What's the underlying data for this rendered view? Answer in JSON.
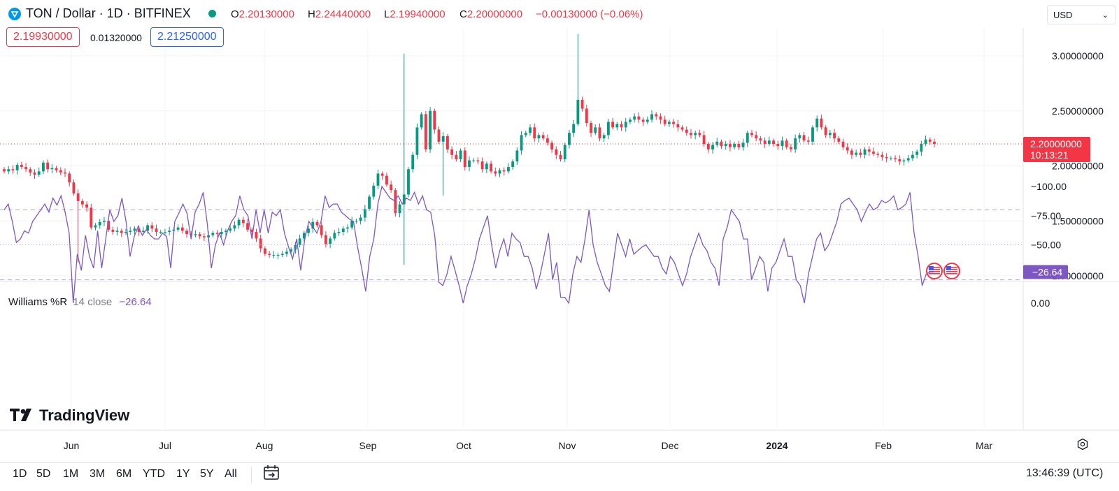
{
  "header": {
    "symbol": "TON / Dollar · 1D · BITFINEX",
    "ohlc": {
      "o_label": "O",
      "o": "2.20130000",
      "h_label": "H",
      "h": "2.24440000",
      "l_label": "L",
      "l": "2.19940000",
      "c_label": "C",
      "c": "2.20000000",
      "change": "−0.00130000 (−0.06%)"
    },
    "bid": "2.19930000",
    "spread": "0.01320000",
    "ask": "2.21250000",
    "currency": "USD"
  },
  "last_price": {
    "value": "2.20000000",
    "countdown": "10:13:21"
  },
  "indicator": {
    "name": "Williams %R",
    "params": "14 close",
    "value": "−26.64",
    "badge": "−26.64"
  },
  "footer": {
    "ranges": [
      "1D",
      "5D",
      "1M",
      "3M",
      "6M",
      "YTD",
      "1Y",
      "5Y",
      "All"
    ],
    "time": "13:46:39 (UTC)"
  },
  "brand": "TradingView",
  "colors": {
    "up": "#089981",
    "down": "#F23645",
    "indicator": "#7E57C2",
    "grid": "#F0F3FA",
    "text": "#131722"
  },
  "chart_data": [
    {
      "type": "candlestick",
      "timeframe": "1D",
      "x_axis_labels": [
        "Jun",
        "Jul",
        "Aug",
        "Sep",
        "Oct",
        "Nov",
        "Dec",
        "2024",
        "Feb",
        "Mar"
      ],
      "y_ticks": [
        "1.00000000",
        "1.50000000",
        "2.00000000",
        "2.50000000",
        "3.00000000"
      ],
      "ylim": [
        0.98,
        3.18
      ],
      "last_price_line": 2.2,
      "closes": [
        1.95,
        1.97,
        1.96,
        2.01,
        1.99,
        1.97,
        1.94,
        1.92,
        1.95,
        2.03,
        1.97,
        1.98,
        1.96,
        1.94,
        1.93,
        1.85,
        1.75,
        1.68,
        1.65,
        1.62,
        1.44,
        1.46,
        1.49,
        1.5,
        1.42,
        1.4,
        1.41,
        1.39,
        1.4,
        1.41,
        1.43,
        1.4,
        1.41,
        1.46,
        1.43,
        1.4,
        1.4,
        1.4,
        1.41,
        1.42,
        1.44,
        1.41,
        1.38,
        1.37,
        1.38,
        1.36,
        1.35,
        1.37,
        1.39,
        1.38,
        1.4,
        1.41,
        1.43,
        1.46,
        1.51,
        1.48,
        1.42,
        1.4,
        1.34,
        1.25,
        1.2,
        1.19,
        1.19,
        1.19,
        1.2,
        1.22,
        1.24,
        1.28,
        1.34,
        1.39,
        1.43,
        1.49,
        1.46,
        1.37,
        1.29,
        1.34,
        1.39,
        1.4,
        1.43,
        1.44,
        1.5,
        1.5,
        1.53,
        1.61,
        1.72,
        1.82,
        1.93,
        1.91,
        1.83,
        1.78,
        1.57,
        1.65,
        1.74,
        1.97,
        2.1,
        2.35,
        2.47,
        2.15,
        2.5,
        2.33,
        2.22,
        2.27,
        2.15,
        2.1,
        2.06,
        2.14,
        1.99,
        2.05,
        2.05,
        2.04,
        1.97,
        2.02,
        1.95,
        1.93,
        1.96,
        1.95,
        1.99,
        2.04,
        2.14,
        2.28,
        2.3,
        2.35,
        2.25,
        2.28,
        2.25,
        2.21,
        2.15,
        2.1,
        2.06,
        2.19,
        2.3,
        2.38,
        2.6,
        2.52,
        2.39,
        2.3,
        2.35,
        2.25,
        2.28,
        2.4,
        2.35,
        2.38,
        2.35,
        2.4,
        2.42,
        2.45,
        2.42,
        2.4,
        2.42,
        2.47,
        2.45,
        2.42,
        2.38,
        2.4,
        2.38,
        2.35,
        2.33,
        2.3,
        2.28,
        2.3,
        2.28,
        2.2,
        2.15,
        2.19,
        2.22,
        2.18,
        2.2,
        2.17,
        2.2,
        2.17,
        2.21,
        2.3,
        2.28,
        2.25,
        2.23,
        2.2,
        2.23,
        2.2,
        2.18,
        2.23,
        2.17,
        2.15,
        2.25,
        2.28,
        2.23,
        2.22,
        2.35,
        2.43,
        2.35,
        2.28,
        2.3,
        2.25,
        2.22,
        2.17,
        2.14,
        2.1,
        2.12,
        2.1,
        2.15,
        2.13,
        2.11,
        2.1,
        2.08,
        2.07,
        2.07,
        2.06,
        2.04,
        2.05,
        2.07,
        2.1,
        2.13,
        2.2,
        2.24,
        2.22,
        2.2
      ],
      "spikes": [
        {
          "position": "early Jun",
          "low": 1.12
        },
        {
          "position": "mid Sep",
          "high": 3.02,
          "low": 1.1
        },
        {
          "position": "late Sep",
          "low": 1.73
        },
        {
          "position": "early Nov",
          "high": 3.2
        }
      ]
    },
    {
      "type": "line",
      "name": "Williams %R",
      "y_ticks": [
        "0.00",
        "−50.00",
        "−75.00",
        "−100.00"
      ],
      "ylim": [
        -100,
        0
      ],
      "bands": {
        "upper": -20,
        "middle": -50,
        "lower": -80
      },
      "values": [
        -80,
        -85,
        -70,
        -52,
        -55,
        -62,
        -60,
        -70,
        -75,
        -80,
        -85,
        -78,
        -90,
        -84,
        -92,
        -78,
        -60,
        0,
        -42,
        -28,
        -58,
        -40,
        -30,
        -62,
        -30,
        -55,
        -80,
        -70,
        -75,
        -90,
        -70,
        -40,
        -57,
        -66,
        -58,
        -63,
        -58,
        -55,
        -55,
        -60,
        -57,
        -30,
        -70,
        -77,
        -85,
        -77,
        -55,
        -78,
        -85,
        -95,
        -68,
        -30,
        -50,
        -60,
        -50,
        -62,
        -70,
        -75,
        -92,
        -80,
        -75,
        -55,
        -80,
        -60,
        -80,
        -60,
        -78,
        -75,
        -80,
        -60,
        -48,
        -38,
        -55,
        -28,
        -55,
        -70,
        -65,
        -60,
        -70,
        -92,
        -82,
        -85,
        -85,
        -78,
        -75,
        -72,
        -70,
        -48,
        -30,
        -10,
        -40,
        -55,
        -85,
        -100,
        -95,
        -90,
        -88,
        -92,
        -85,
        -90,
        -88,
        -95,
        -85,
        -92,
        -80,
        -78,
        -58,
        -18,
        -15,
        -25,
        -40,
        -28,
        -15,
        0,
        -15,
        -25,
        -38,
        -55,
        -65,
        -75,
        -50,
        -30,
        -45,
        -55,
        -40,
        -60,
        -55,
        -52,
        -40,
        -40,
        -30,
        -12,
        -25,
        -42,
        -60,
        -20,
        -35,
        -5,
        -5,
        0,
        -25,
        -40,
        -35,
        -55,
        -80,
        -50,
        -35,
        -25,
        -15,
        -10,
        -35,
        -60,
        -50,
        -40,
        -55,
        -42,
        -45,
        -48,
        -50,
        -45,
        -40,
        -40,
        -30,
        -25,
        -40,
        -35,
        -25,
        -15,
        -25,
        -40,
        -50,
        -60,
        -50,
        -45,
        -35,
        -30,
        -15,
        -55,
        -65,
        -80,
        -75,
        -70,
        -55,
        -55,
        -20,
        -30,
        -40,
        -35,
        -10,
        -30,
        -35,
        -45,
        -55,
        -40,
        -40,
        -20,
        -15,
        0,
        -25,
        -40,
        -55,
        -60,
        -45,
        -50,
        -60,
        -70,
        -85,
        -88,
        -90,
        -85,
        -80,
        -70,
        -78,
        -85,
        -80,
        -82,
        -88,
        -86,
        -88,
        -92,
        -80,
        -82,
        -85,
        -95,
        -60,
        -40,
        -15,
        -25,
        -26.64,
        -26.64
      ]
    }
  ]
}
